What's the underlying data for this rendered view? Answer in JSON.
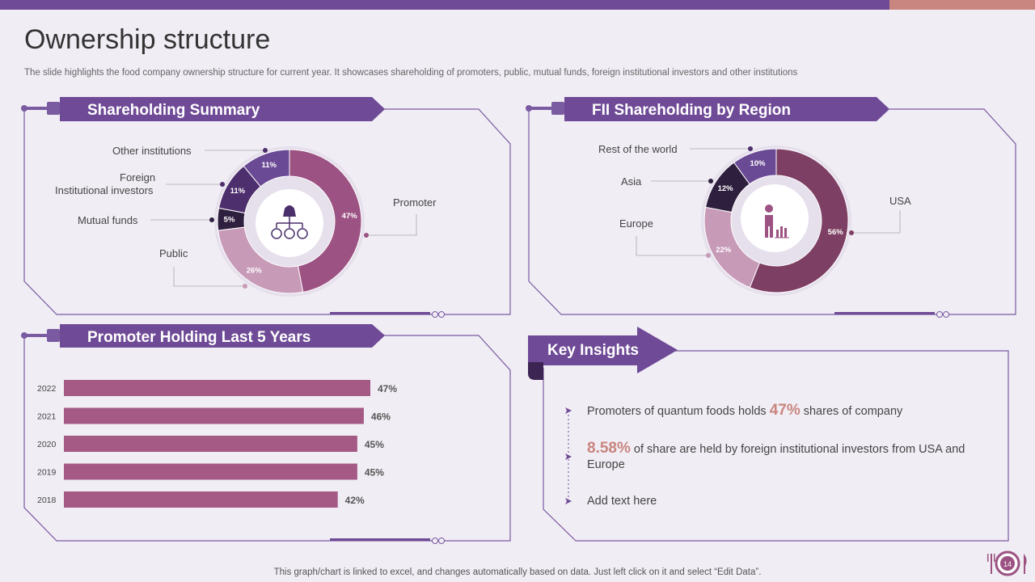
{
  "slide": {
    "title": "Ownership structure",
    "subtitle": "The slide highlights the food company ownership structure for current year.  It showcases shareholding of promoters, public, mutual funds, foreign institutional investors and other institutions",
    "footer": "This graph/chart is linked to excel,  and changes automatically based on data. Just left click on it and select “Edit Data”.",
    "page_number": "14"
  },
  "colors": {
    "primary": "#6f4a96",
    "accent": "#c9857f",
    "promoter": "#9c5282",
    "public": "#c79ab8",
    "mutual": "#2f1f3f",
    "fii": "#4e2f6e",
    "other": "#6b4a95",
    "usa": "#7d3f63",
    "bar": "#a45a85"
  },
  "panels": {
    "shareholding": {
      "title": "Shareholding Summary"
    },
    "fii": {
      "title": "FII Shareholding by Region"
    },
    "promoter": {
      "title": "Promoter Holding Last 5 Years"
    },
    "insights": {
      "title": "Key Insights"
    }
  },
  "chart_data": [
    {
      "type": "pie",
      "title": "Shareholding Summary",
      "categories": [
        "Promoter",
        "Public",
        "Mutual funds",
        "Foreign Institutional investors",
        "Other institutions"
      ],
      "values": [
        47,
        26,
        5,
        11,
        11
      ],
      "labels": [
        "47%",
        "26%",
        "5%",
        "11%",
        "11%"
      ],
      "legend_labels": [
        "Promoter",
        "Public",
        "Mutual funds",
        "Foreign",
        "Institutional  investors",
        "Other institutions"
      ]
    },
    {
      "type": "pie",
      "title": "FII Shareholding by Region",
      "categories": [
        "USA",
        "Europe",
        "Asia",
        "Rest of the world"
      ],
      "values": [
        56,
        22,
        12,
        10
      ],
      "labels": [
        "56%",
        "22%",
        "12%",
        "10%"
      ]
    },
    {
      "type": "bar",
      "orientation": "horizontal",
      "title": "Promoter Holding Last 5 Years",
      "categories": [
        "2022",
        "2021",
        "2020",
        "2019",
        "2018"
      ],
      "values": [
        47,
        46,
        45,
        45,
        42
      ],
      "labels": [
        "47%",
        "46%",
        "45%",
        "45%",
        "42%"
      ]
    }
  ],
  "insights": [
    {
      "pre": "Promoters of quantum foods holds ",
      "big": "47%",
      "post": " shares of company"
    },
    {
      "pre": "",
      "big": "8.58%",
      "post": " of share are held by foreign institutional  investors from USA and Europe"
    },
    {
      "pre": "Add text here",
      "big": "",
      "post": ""
    }
  ]
}
